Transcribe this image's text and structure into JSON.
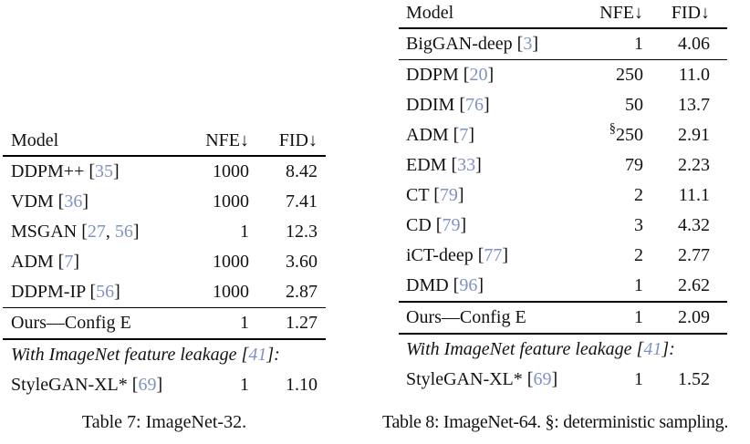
{
  "citation_color": "#7f92c5",
  "tables": [
    {
      "id": "imagenet32",
      "caption": "Table 7: ImageNet-32.",
      "columns": {
        "model": "Model",
        "nfe": "NFE↓",
        "fid": "FID↓"
      },
      "groups": [
        {
          "rows": [
            {
              "name": "DDPM++",
              "cites": [
                "35"
              ],
              "nfe": "1000",
              "fid": "8.42"
            },
            {
              "name": "VDM",
              "cites": [
                "36"
              ],
              "nfe": "1000",
              "fid": "7.41"
            },
            {
              "name": "MSGAN",
              "cites": [
                "27",
                "56"
              ],
              "nfe": "1",
              "fid": "12.3"
            },
            {
              "name": "ADM",
              "cites": [
                "7"
              ],
              "nfe": "1000",
              "fid": "3.60"
            },
            {
              "name": "DDPM-IP",
              "cites": [
                "56"
              ],
              "nfe": "1000",
              "fid": "2.87"
            }
          ]
        },
        {
          "rows": [
            {
              "name": "Ours—Config E",
              "cites": [],
              "nfe": "1",
              "fid": "1.27"
            }
          ]
        },
        {
          "rows": [
            {
              "name": "With ImageNet feature leakage",
              "cites": [
                "41"
              ],
              "suffix": ":",
              "italic": true
            },
            {
              "name": "StyleGAN-XL*",
              "cites": [
                "69"
              ],
              "nfe": "1",
              "fid": "1.10"
            }
          ]
        }
      ]
    },
    {
      "id": "imagenet64",
      "caption": "Table 8: ImageNet-64. §: deterministic sampling.",
      "columns": {
        "model": "Model",
        "nfe": "NFE↓",
        "fid": "FID↓"
      },
      "groups": [
        {
          "rows": [
            {
              "name": "BigGAN-deep",
              "cites": [
                "3"
              ],
              "nfe": "1",
              "fid": "4.06"
            }
          ]
        },
        {
          "rows": [
            {
              "name": "DDPM",
              "cites": [
                "20"
              ],
              "nfe": "250",
              "fid": "11.0"
            },
            {
              "name": "DDIM",
              "cites": [
                "76"
              ],
              "nfe": "50",
              "fid": "13.7"
            },
            {
              "name": "ADM",
              "cites": [
                "7"
              ],
              "nfe": "250",
              "nfe_sup": "§",
              "fid": "2.91"
            },
            {
              "name": "EDM",
              "cites": [
                "33"
              ],
              "nfe": "79",
              "fid": "2.23"
            },
            {
              "name": "CT",
              "cites": [
                "79"
              ],
              "nfe": "2",
              "fid": "11.1"
            },
            {
              "name": "CD",
              "cites": [
                "79"
              ],
              "nfe": "3",
              "fid": "4.32"
            },
            {
              "name": "iCT-deep",
              "cites": [
                "77"
              ],
              "nfe": "2",
              "fid": "2.77"
            },
            {
              "name": "DMD",
              "cites": [
                "96"
              ],
              "nfe": "1",
              "fid": "2.62"
            }
          ]
        },
        {
          "rows": [
            {
              "name": "Ours—Config E",
              "cites": [],
              "nfe": "1",
              "fid": "2.09"
            }
          ]
        },
        {
          "rows": [
            {
              "name": "With ImageNet feature leakage",
              "cites": [
                "41"
              ],
              "suffix": ":",
              "italic": true
            },
            {
              "name": "StyleGAN-XL*",
              "cites": [
                "69"
              ],
              "nfe": "1",
              "fid": "1.52"
            }
          ]
        }
      ]
    }
  ]
}
